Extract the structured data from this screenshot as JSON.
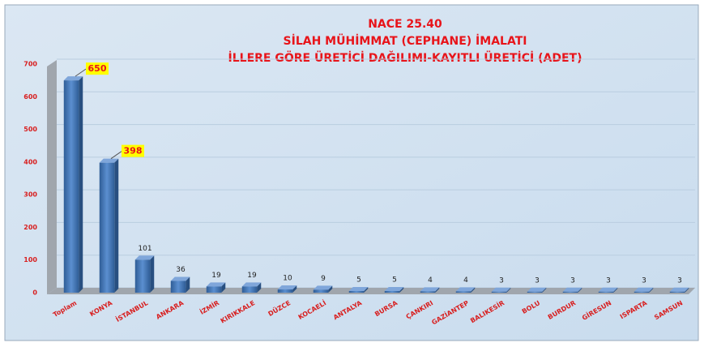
{
  "chart_data": {
    "type": "bar",
    "title": [
      "NACE 25.40",
      "SİLAH MÜHİMMAT (CEPHANE) İMALATI",
      "İLLERE GÖRE ÜRETİCİ DAĞILIMI-KAYITLI ÜRETİCİ (ADET)"
    ],
    "categories": [
      "Toplam",
      "KONYA",
      "İSTANBUL",
      "ANKARA",
      "İZMİR",
      "KIRIKKALE",
      "DÜZCE",
      "KOCAELİ",
      "ANTALYA",
      "BURSA",
      "ÇANKIRI",
      "GAZİANTEP",
      "BALIKESİR",
      "BOLU",
      "BURDUR",
      "GİRESUN",
      "ISPARTA",
      "SAMSUN"
    ],
    "values": [
      650,
      398,
      101,
      36,
      19,
      19,
      10,
      9,
      5,
      5,
      4,
      4,
      3,
      3,
      3,
      3,
      3,
      3
    ],
    "color": "#4a7ebb",
    "ylim": [
      0,
      700
    ],
    "yticks": [
      0,
      100,
      200,
      300,
      400,
      500,
      600,
      700
    ],
    "grid": true
  }
}
